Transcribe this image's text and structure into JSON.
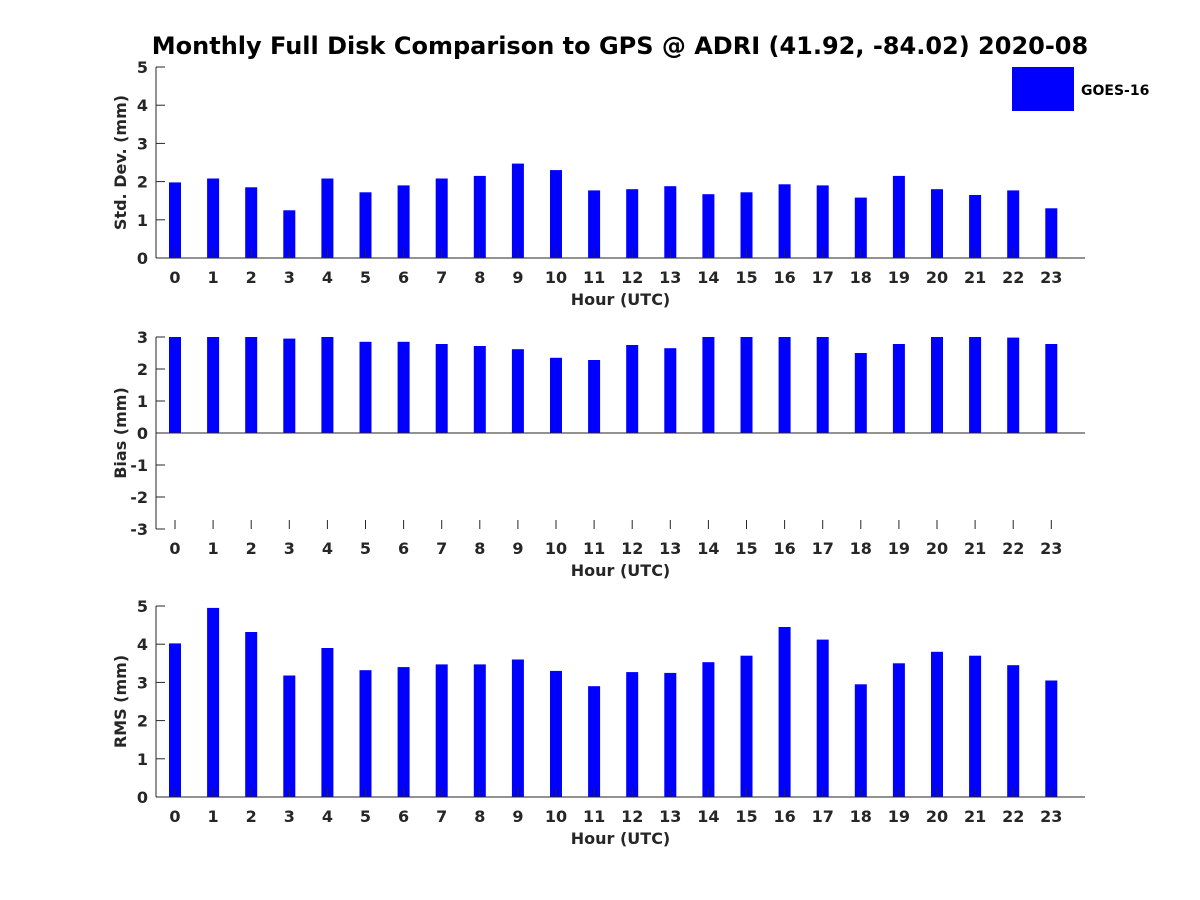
{
  "title": "Monthly Full Disk Comparison to GPS @ ADRI (41.92, -84.02) 2020-08",
  "legend": {
    "label": "GOES-16",
    "color": "#0000ff"
  },
  "chart_data": [
    {
      "type": "bar",
      "xlabel": "Hour (UTC)",
      "ylabel": "Std. Dev. (mm)",
      "ylim": [
        0,
        5
      ],
      "yticks": [
        "0",
        "1",
        "2",
        "3",
        "4",
        "5"
      ],
      "categories": [
        "0",
        "1",
        "2",
        "3",
        "4",
        "5",
        "6",
        "7",
        "8",
        "9",
        "10",
        "11",
        "12",
        "13",
        "14",
        "15",
        "16",
        "17",
        "18",
        "19",
        "20",
        "21",
        "22",
        "23"
      ],
      "series": [
        {
          "name": "GOES-16",
          "values": [
            1.98,
            2.08,
            1.85,
            1.25,
            2.08,
            1.72,
            1.9,
            2.08,
            2.15,
            2.47,
            2.3,
            1.77,
            1.8,
            1.88,
            1.67,
            1.72,
            1.93,
            1.9,
            1.58,
            2.15,
            1.8,
            1.65,
            1.77,
            1.3
          ]
        }
      ],
      "grid": false
    },
    {
      "type": "bar",
      "xlabel": "Hour (UTC)",
      "ylabel": "Bias (mm)",
      "ylim": [
        -3,
        3
      ],
      "yticks": [
        "-3",
        "-2",
        "-1",
        "0",
        "1",
        "2",
        "3"
      ],
      "categories": [
        "0",
        "1",
        "2",
        "3",
        "4",
        "5",
        "6",
        "7",
        "8",
        "9",
        "10",
        "11",
        "12",
        "13",
        "14",
        "15",
        "16",
        "17",
        "18",
        "19",
        "20",
        "21",
        "22",
        "23"
      ],
      "series": [
        {
          "name": "GOES-16",
          "values": [
            3.0,
            3.0,
            3.0,
            2.95,
            3.0,
            2.85,
            2.85,
            2.78,
            2.72,
            2.62,
            2.35,
            2.28,
            2.75,
            2.65,
            3.0,
            3.0,
            3.0,
            3.0,
            2.5,
            2.78,
            3.0,
            3.0,
            2.98,
            2.78
          ]
        }
      ],
      "grid": false
    },
    {
      "type": "bar",
      "xlabel": "Hour (UTC)",
      "ylabel": "RMS (mm)",
      "ylim": [
        0,
        5
      ],
      "yticks": [
        "0",
        "1",
        "2",
        "3",
        "4",
        "5"
      ],
      "categories": [
        "0",
        "1",
        "2",
        "3",
        "4",
        "5",
        "6",
        "7",
        "8",
        "9",
        "10",
        "11",
        "12",
        "13",
        "14",
        "15",
        "16",
        "17",
        "18",
        "19",
        "20",
        "21",
        "22",
        "23"
      ],
      "series": [
        {
          "name": "GOES-16",
          "values": [
            4.02,
            4.95,
            4.32,
            3.18,
            3.9,
            3.32,
            3.4,
            3.47,
            3.47,
            3.6,
            3.3,
            2.9,
            3.27,
            3.25,
            3.53,
            3.7,
            4.45,
            4.12,
            2.95,
            3.5,
            3.8,
            3.7,
            3.45,
            3.05
          ]
        }
      ],
      "grid": false
    }
  ]
}
